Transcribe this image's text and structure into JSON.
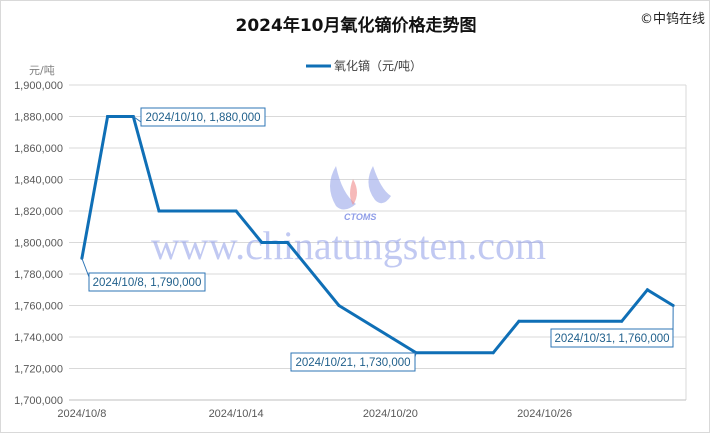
{
  "chart_data": {
    "type": "line",
    "title": "2024年10月氧化镝价格走势图",
    "copyright": "©中钨在线",
    "ylabel": "元/吨",
    "ylim": [
      1700000,
      1900000
    ],
    "ytick_step": 20000,
    "yticks": [
      "1,700,000",
      "1,720,000",
      "1,740,000",
      "1,760,000",
      "1,780,000",
      "1,800,000",
      "1,820,000",
      "1,840,000",
      "1,860,000",
      "1,880,000",
      "1,900,000"
    ],
    "xlim": [
      "2024/10/8",
      "2024/10/31"
    ],
    "xticks": [
      "2024/10/8",
      "2024/10/14",
      "2024/10/20",
      "2024/10/26"
    ],
    "grid": true,
    "legend_position": "top",
    "series": [
      {
        "name": "氧化镝（元/吨）",
        "color": "#0f6fb6",
        "points": [
          [
            "2024/10/8",
            1790000
          ],
          [
            "2024/10/9",
            1880000
          ],
          [
            "2024/10/10",
            1880000
          ],
          [
            "2024/10/11",
            1820000
          ],
          [
            "2024/10/14",
            1820000
          ],
          [
            "2024/10/15",
            1800000
          ],
          [
            "2024/10/16",
            1800000
          ],
          [
            "2024/10/18",
            1760000
          ],
          [
            "2024/10/21",
            1730000
          ],
          [
            "2024/10/24",
            1730000
          ],
          [
            "2024/10/25",
            1750000
          ],
          [
            "2024/10/29",
            1750000
          ],
          [
            "2024/10/30",
            1770000
          ],
          [
            "2024/10/31",
            1760000
          ]
        ]
      }
    ],
    "annotations": [
      {
        "text": "2024/10/10, 1,880,000",
        "date": "2024/10/10",
        "value": 1880000
      },
      {
        "text": "2024/10/8, 1,790,000",
        "date": "2024/10/8",
        "value": 1790000
      },
      {
        "text": "2024/10/21, 1,730,000",
        "date": "2024/10/21",
        "value": 1730000
      },
      {
        "text": "2024/10/31, 1,760,000",
        "date": "2024/10/31",
        "value": 1760000
      }
    ],
    "watermark": {
      "text": "www.chinatungsten.com",
      "logo": "CTOMS"
    }
  }
}
